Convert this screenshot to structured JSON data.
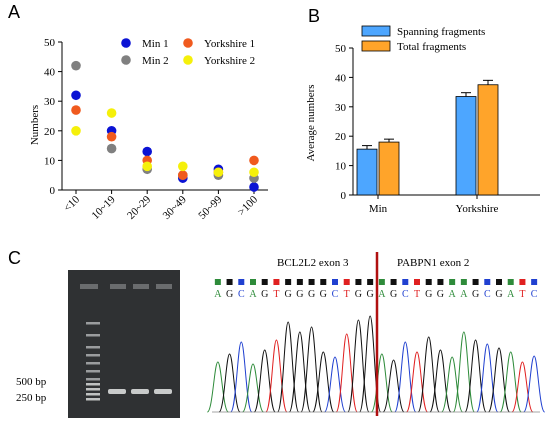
{
  "panels": {
    "a": "A",
    "b": "B",
    "c": "C"
  },
  "chart_data": [
    {
      "type": "scatter",
      "categories": [
        "<10",
        "10~19",
        "20~29",
        "30~49",
        "50~99",
        ">100"
      ],
      "ylabel": "Numbers",
      "xlabel": "",
      "ylim": [
        0,
        50
      ],
      "yticks": [
        0,
        10,
        20,
        30,
        40,
        50
      ],
      "legend_position": "top",
      "series": [
        {
          "name": "Min 1",
          "color": "#0b13d4",
          "values": [
            32,
            20,
            13,
            4,
            7,
            1
          ]
        },
        {
          "name": "Min 2",
          "color": "#808080",
          "values": [
            42,
            14,
            7,
            5,
            5,
            4
          ]
        },
        {
          "name": "Yorkshire 1",
          "color": "#f05a1e",
          "values": [
            27,
            18,
            10,
            5,
            6,
            10
          ]
        },
        {
          "name": "Yorkshire 2",
          "color": "#f5f00a",
          "values": [
            20,
            26,
            8,
            8,
            6,
            6
          ]
        }
      ]
    },
    {
      "type": "bar",
      "categories": [
        "Min",
        "Yorkshire"
      ],
      "ylabel": "Average numbers",
      "xlabel": "",
      "ylim": [
        0,
        50
      ],
      "yticks": [
        0,
        10,
        20,
        30,
        40,
        50
      ],
      "legend_position": "top",
      "series": [
        {
          "name": "Spanning fragments",
          "color": "#4da6ff",
          "values": [
            15.6,
            33.5
          ],
          "errors": [
            1.2,
            1.3
          ]
        },
        {
          "name": "Total fragments",
          "color": "#ffa42a",
          "values": [
            18.0,
            37.5
          ],
          "errors": [
            1.0,
            1.5
          ]
        }
      ]
    }
  ],
  "gel": {
    "markers": [
      "500 bp",
      "250 bp"
    ]
  },
  "sequencing": {
    "label_left": "BCL2L2  exon 3",
    "label_right": "PABPN1  exon 2",
    "sequence": "AGCAGTGGGGCTGGAGCTGGAAGCGATC",
    "base_colors": {
      "A": "#2e8b3a",
      "G": "#111111",
      "C": "#2040d0",
      "T": "#e02020"
    },
    "junction_color": "#b01010"
  }
}
